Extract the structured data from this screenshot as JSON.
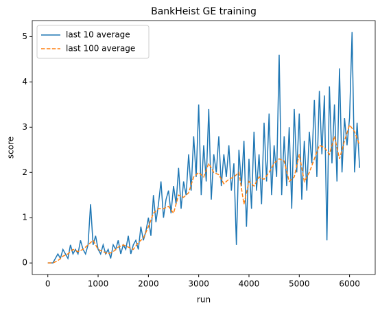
{
  "chart_data": {
    "type": "line",
    "title": "BankHeist GE training",
    "xlabel": "run",
    "ylabel": "score",
    "xlim": [
      -310,
      6510
    ],
    "ylim": [
      -0.255,
      5.355
    ],
    "xticks": [
      0,
      1000,
      2000,
      3000,
      4000,
      5000,
      6000
    ],
    "yticks": [
      0,
      1,
      2,
      3,
      4,
      5
    ],
    "legend": "upper left",
    "series": [
      {
        "name": "last 10 average",
        "color": "#1f77b4",
        "style": "solid",
        "x": [
          0,
          50,
          100,
          150,
          200,
          250,
          300,
          350,
          400,
          450,
          500,
          550,
          600,
          650,
          700,
          750,
          800,
          850,
          900,
          950,
          1000,
          1050,
          1100,
          1150,
          1200,
          1250,
          1300,
          1350,
          1400,
          1450,
          1500,
          1550,
          1600,
          1650,
          1700,
          1750,
          1800,
          1850,
          1900,
          1950,
          2000,
          2050,
          2100,
          2150,
          2200,
          2250,
          2300,
          2350,
          2400,
          2450,
          2500,
          2550,
          2600,
          2650,
          2700,
          2750,
          2800,
          2850,
          2900,
          2950,
          3000,
          3050,
          3100,
          3150,
          3200,
          3250,
          3300,
          3350,
          3400,
          3450,
          3500,
          3550,
          3600,
          3650,
          3700,
          3750,
          3800,
          3850,
          3900,
          3950,
          4000,
          4050,
          4100,
          4150,
          4200,
          4250,
          4300,
          4350,
          4400,
          4450,
          4500,
          4550,
          4600,
          4650,
          4700,
          4750,
          4800,
          4850,
          4900,
          4950,
          5000,
          5050,
          5100,
          5150,
          5200,
          5250,
          5300,
          5350,
          5400,
          5450,
          5500,
          5550,
          5600,
          5650,
          5700,
          5750,
          5800,
          5850,
          5900,
          5950,
          6000,
          6050,
          6100,
          6150,
          6200
        ],
        "values": [
          0,
          0,
          0,
          0.1,
          0.2,
          0.1,
          0.3,
          0.2,
          0.1,
          0.4,
          0.2,
          0.3,
          0.2,
          0.5,
          0.3,
          0.2,
          0.4,
          1.3,
          0.4,
          0.6,
          0.3,
          0.2,
          0.4,
          0.2,
          0.3,
          0.1,
          0.4,
          0.3,
          0.5,
          0.2,
          0.4,
          0.3,
          0.6,
          0.2,
          0.4,
          0.5,
          0.3,
          0.8,
          0.5,
          0.7,
          1.0,
          0.6,
          1.5,
          0.9,
          1.3,
          1.8,
          1.0,
          1.4,
          1.6,
          1.1,
          1.7,
          1.3,
          2.1,
          1.2,
          1.8,
          1.5,
          2.4,
          1.6,
          2.8,
          1.9,
          3.5,
          1.5,
          2.6,
          1.8,
          3.4,
          1.4,
          2.4,
          2.0,
          2.8,
          1.7,
          2.4,
          1.9,
          2.6,
          1.6,
          2.2,
          0.4,
          2.5,
          1.7,
          2.7,
          0.8,
          2.3,
          1.2,
          2.9,
          1.6,
          2.4,
          1.3,
          3.1,
          1.8,
          3.3,
          1.5,
          2.6,
          1.9,
          4.6,
          1.5,
          2.8,
          1.7,
          3.0,
          1.2,
          3.4,
          2.0,
          3.3,
          1.4,
          2.7,
          1.6,
          2.9,
          2.2,
          3.6,
          1.9,
          3.8,
          2.4,
          3.7,
          0.5,
          3.9,
          2.2,
          3.5,
          1.8,
          4.3,
          2.0,
          3.2,
          2.6,
          3.2,
          5.1,
          2.0,
          3.1,
          2.1
        ]
      },
      {
        "name": "last 100 average",
        "color": "#ff7f0e",
        "style": "dashed",
        "x": [
          0,
          100,
          200,
          300,
          400,
          500,
          600,
          700,
          800,
          900,
          1000,
          1100,
          1200,
          1300,
          1400,
          1500,
          1600,
          1700,
          1800,
          1900,
          2000,
          2100,
          2200,
          2300,
          2400,
          2500,
          2600,
          2700,
          2800,
          2900,
          3000,
          3100,
          3200,
          3300,
          3400,
          3500,
          3600,
          3700,
          3800,
          3900,
          4000,
          4100,
          4200,
          4300,
          4400,
          4500,
          4600,
          4700,
          4800,
          4900,
          5000,
          5100,
          5200,
          5300,
          5400,
          5500,
          5600,
          5700,
          5800,
          5900,
          6000,
          6100,
          6200
        ],
        "values": [
          0,
          0,
          0.05,
          0.15,
          0.2,
          0.3,
          0.25,
          0.3,
          0.4,
          0.5,
          0.3,
          0.25,
          0.2,
          0.25,
          0.35,
          0.4,
          0.35,
          0.3,
          0.45,
          0.55,
          0.8,
          1.1,
          1.2,
          1.2,
          1.25,
          1.1,
          1.5,
          1.45,
          1.55,
          1.9,
          2.0,
          1.9,
          2.2,
          2.0,
          1.95,
          1.75,
          1.85,
          1.9,
          2.0,
          1.3,
          1.8,
          1.7,
          1.9,
          1.85,
          2.0,
          2.2,
          2.3,
          2.25,
          1.8,
          1.9,
          2.4,
          1.8,
          2.0,
          2.3,
          2.6,
          2.55,
          2.4,
          2.8,
          2.3,
          2.7,
          3.05,
          2.9,
          2.6
        ]
      }
    ]
  }
}
